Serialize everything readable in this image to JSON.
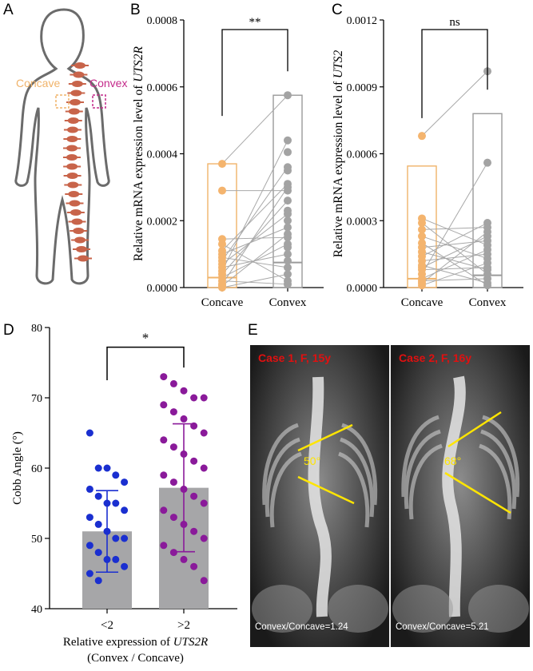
{
  "panels": {
    "a": "A",
    "b": "B",
    "c": "C",
    "d": "D",
    "e": "E"
  },
  "panel_a": {
    "concave_label": "Concave",
    "convex_label": "Convex",
    "concave_color": "#f0b36a",
    "convex_color": "#c42a8a",
    "spine_color": "#c8644a"
  },
  "chart_data": [
    {
      "id": "B",
      "type": "scatter",
      "ylabel_prefix": "Relative mRNA expression  level of ",
      "ylabel_gene": "UTS2R",
      "categories": [
        "Concave",
        "Convex"
      ],
      "yticks": [
        "0.0000",
        "0.0002",
        "0.0004",
        "0.0006",
        "0.0008"
      ],
      "ylim": [
        0,
        0.0008
      ],
      "significance": "**",
      "bar_means": [
        0.00037,
        0.000575
      ],
      "medians": [
        3e-05,
        7.5e-05
      ],
      "concave_values": [
        0.00037,
        0.00029,
        0.000145,
        0.00013,
        0.00011,
        0.0001,
        9e-05,
        8e-05,
        7e-05,
        6e-05,
        5e-05,
        4e-05,
        3e-05,
        2e-05,
        1e-05,
        5e-06,
        0.0
      ],
      "convex_values": [
        0.000575,
        0.00044,
        0.000405,
        0.00036,
        0.00035,
        0.00031,
        0.0003,
        0.00029,
        0.00026,
        0.00023,
        0.00022,
        0.0002,
        0.00018,
        0.00016,
        0.00015,
        0.00013,
        0.00012,
        0.0001,
        8e-05,
        6e-05,
        4e-05,
        2e-05,
        1e-05
      ]
    },
    {
      "id": "C",
      "type": "scatter",
      "ylabel_prefix": "Relative mRNA expression level of ",
      "ylabel_gene": "UTS2",
      "categories": [
        "Concave",
        "Convex"
      ],
      "yticks": [
        "0.0000",
        "0.0003",
        "0.0006",
        "0.0009",
        "0.0012"
      ],
      "ylim": [
        0,
        0.0012
      ],
      "significance": "ns",
      "bar_means": [
        0.000545,
        0.00078
      ],
      "medians": [
        4e-05,
        5.5e-05
      ],
      "concave_values": [
        0.00068,
        0.00031,
        0.00029,
        0.00026,
        0.00023,
        0.0002,
        0.00018,
        0.00016,
        0.00014,
        0.00012,
        0.0001,
        9e-05,
        8e-05,
        6e-05,
        4e-05,
        3e-05,
        2e-05,
        1e-05
      ],
      "convex_values": [
        0.00097,
        0.00056,
        0.00029,
        0.00027,
        0.00025,
        0.00023,
        0.00021,
        0.00019,
        0.00017,
        0.00015,
        0.00013,
        0.00011,
        9e-05,
        8e-05,
        6e-05,
        4e-05,
        2e-05,
        1e-05
      ]
    },
    {
      "id": "D",
      "type": "bar",
      "ylabel": "Cobb Angle (°)",
      "xlabel_prefix": "Relative expression of ",
      "xlabel_gene": "UTS2R",
      "xlabel_line2": "(Convex / Concave)",
      "categories": [
        "<2",
        ">2"
      ],
      "yticks": [
        "40",
        "50",
        "60",
        "70",
        "80"
      ],
      "ylim": [
        40,
        80
      ],
      "significance": "*",
      "means": [
        51,
        57.2
      ],
      "sd_upper": [
        56.8,
        66.3
      ],
      "sd_lower": [
        45.2,
        48.1
      ],
      "colors": [
        "#1a2fd0",
        "#8a1a9a"
      ],
      "group1": [
        65,
        60,
        60,
        59,
        58,
        57,
        56,
        55,
        55,
        54,
        53,
        52,
        51,
        50,
        50,
        49,
        48,
        47,
        47,
        46,
        45,
        44
      ],
      "group2": [
        73,
        72,
        71,
        70,
        70,
        69,
        68,
        67,
        66,
        65,
        64,
        63,
        62,
        61,
        60,
        59,
        58,
        57,
        56,
        55,
        54,
        53,
        52,
        51,
        50,
        49,
        48,
        47,
        46,
        44
      ]
    }
  ],
  "panel_e": {
    "case1": "Case 1, F, 15y",
    "case2": "Case 2, F, 16y",
    "angle1": "50°",
    "angle2": "68°",
    "ratio1": "Convex/Concave=1.24",
    "ratio2": "Convex/Concave=5.21"
  }
}
